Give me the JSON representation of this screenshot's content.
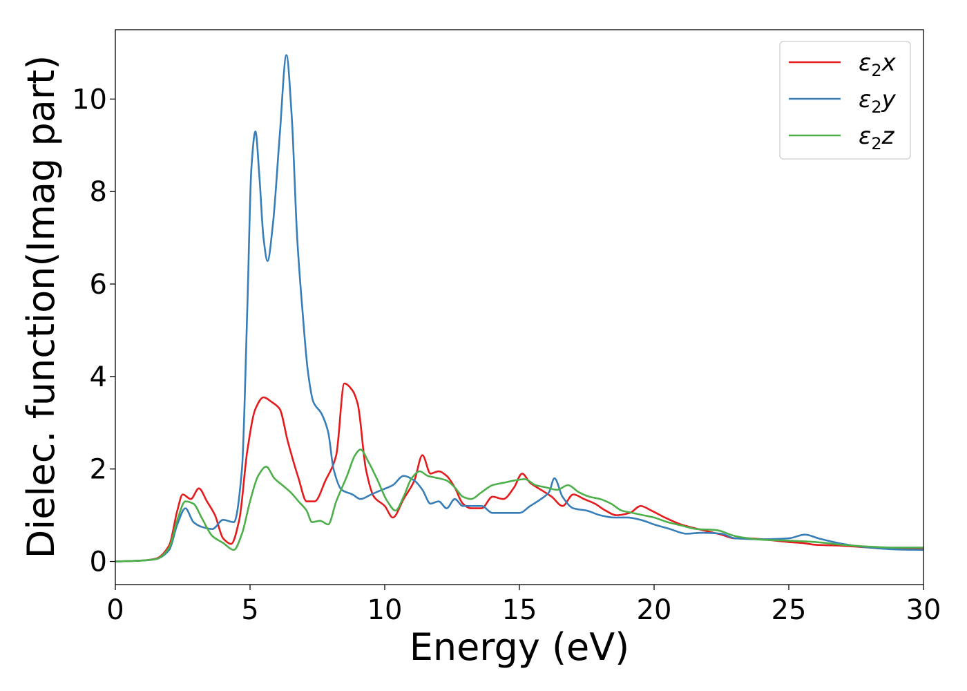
{
  "chart_data": {
    "type": "line",
    "title": "",
    "xlabel": "Energy (eV)",
    "ylabel": "Dielec. function(Imag part)",
    "xlim": [
      0,
      30
    ],
    "ylim": [
      -0.5,
      11.5
    ],
    "xticks": [
      0,
      5,
      10,
      15,
      20,
      25,
      30
    ],
    "yticks": [
      0,
      2,
      4,
      6,
      8,
      10
    ],
    "grid": false,
    "legend_position": "top-right",
    "series": [
      {
        "name": "ε₂x",
        "legend": {
          "base": "ε",
          "sub": "2",
          "axis": "x"
        },
        "color": "#e41a1c",
        "points": [
          [
            0,
            0
          ],
          [
            1,
            0.02
          ],
          [
            1.5,
            0.06
          ],
          [
            2,
            0.35
          ],
          [
            2.3,
            1.1
          ],
          [
            2.5,
            1.45
          ],
          [
            2.8,
            1.35
          ],
          [
            3.1,
            1.58
          ],
          [
            3.4,
            1.3
          ],
          [
            3.7,
            1.0
          ],
          [
            4.0,
            0.5
          ],
          [
            4.3,
            0.38
          ],
          [
            4.6,
            0.9
          ],
          [
            4.9,
            2.4
          ],
          [
            5.2,
            3.3
          ],
          [
            5.5,
            3.55
          ],
          [
            5.8,
            3.45
          ],
          [
            6.1,
            3.3
          ],
          [
            6.4,
            2.6
          ],
          [
            6.8,
            1.8
          ],
          [
            7.1,
            1.3
          ],
          [
            7.4,
            1.3
          ],
          [
            7.8,
            1.75
          ],
          [
            8.2,
            2.3
          ],
          [
            8.5,
            3.85
          ],
          [
            8.8,
            3.7
          ],
          [
            9.0,
            3.4
          ],
          [
            9.3,
            2.0
          ],
          [
            9.6,
            1.4
          ],
          [
            10.0,
            1.2
          ],
          [
            10.3,
            0.95
          ],
          [
            10.7,
            1.35
          ],
          [
            11.1,
            1.75
          ],
          [
            11.4,
            2.3
          ],
          [
            11.7,
            1.9
          ],
          [
            12.0,
            1.95
          ],
          [
            12.3,
            1.85
          ],
          [
            12.6,
            1.6
          ],
          [
            12.9,
            1.25
          ],
          [
            13.2,
            1.15
          ],
          [
            13.6,
            1.15
          ],
          [
            14.0,
            1.4
          ],
          [
            14.4,
            1.35
          ],
          [
            14.8,
            1.6
          ],
          [
            15.1,
            1.9
          ],
          [
            15.4,
            1.7
          ],
          [
            15.8,
            1.55
          ],
          [
            16.2,
            1.4
          ],
          [
            16.6,
            1.2
          ],
          [
            17.0,
            1.45
          ],
          [
            17.4,
            1.35
          ],
          [
            17.8,
            1.25
          ],
          [
            18.2,
            1.1
          ],
          [
            18.6,
            1.0
          ],
          [
            19.1,
            1.05
          ],
          [
            19.5,
            1.2
          ],
          [
            19.9,
            1.1
          ],
          [
            20.4,
            0.95
          ],
          [
            21,
            0.8
          ],
          [
            21.5,
            0.72
          ],
          [
            22,
            0.65
          ],
          [
            22.5,
            0.58
          ],
          [
            23,
            0.5
          ],
          [
            23.5,
            0.5
          ],
          [
            24,
            0.48
          ],
          [
            24.5,
            0.45
          ],
          [
            25,
            0.42
          ],
          [
            25.5,
            0.4
          ],
          [
            26,
            0.36
          ],
          [
            27,
            0.34
          ],
          [
            28,
            0.3
          ],
          [
            29,
            0.28
          ],
          [
            30,
            0.27
          ]
        ]
      },
      {
        "name": "ε₂y",
        "legend": {
          "base": "ε",
          "sub": "2",
          "axis": "y"
        },
        "color": "#377eb8",
        "points": [
          [
            0,
            0
          ],
          [
            1,
            0.02
          ],
          [
            1.5,
            0.05
          ],
          [
            2,
            0.25
          ],
          [
            2.3,
            0.8
          ],
          [
            2.6,
            1.15
          ],
          [
            2.9,
            0.85
          ],
          [
            3.2,
            0.75
          ],
          [
            3.6,
            0.7
          ],
          [
            4.0,
            0.9
          ],
          [
            4.4,
            0.85
          ],
          [
            4.7,
            2.0
          ],
          [
            4.9,
            5.5
          ],
          [
            5.05,
            8.5
          ],
          [
            5.2,
            9.3
          ],
          [
            5.35,
            8.3
          ],
          [
            5.5,
            7.0
          ],
          [
            5.65,
            6.5
          ],
          [
            5.85,
            7.3
          ],
          [
            6.1,
            9.2
          ],
          [
            6.35,
            10.95
          ],
          [
            6.55,
            9.6
          ],
          [
            6.75,
            7.0
          ],
          [
            6.95,
            5.4
          ],
          [
            7.15,
            4.1
          ],
          [
            7.35,
            3.45
          ],
          [
            7.65,
            3.2
          ],
          [
            7.9,
            2.8
          ],
          [
            8.1,
            2.0
          ],
          [
            8.4,
            1.55
          ],
          [
            8.8,
            1.45
          ],
          [
            9.1,
            1.35
          ],
          [
            9.5,
            1.45
          ],
          [
            9.9,
            1.55
          ],
          [
            10.3,
            1.65
          ],
          [
            10.7,
            1.85
          ],
          [
            11.1,
            1.75
          ],
          [
            11.4,
            1.55
          ],
          [
            11.7,
            1.25
          ],
          [
            12.0,
            1.3
          ],
          [
            12.3,
            1.15
          ],
          [
            12.6,
            1.35
          ],
          [
            12.9,
            1.2
          ],
          [
            13.2,
            1.2
          ],
          [
            13.6,
            1.2
          ],
          [
            14.0,
            1.05
          ],
          [
            14.5,
            1.05
          ],
          [
            15.0,
            1.05
          ],
          [
            15.4,
            1.2
          ],
          [
            15.8,
            1.35
          ],
          [
            16.1,
            1.5
          ],
          [
            16.3,
            1.8
          ],
          [
            16.6,
            1.4
          ],
          [
            17.0,
            1.15
          ],
          [
            17.5,
            1.1
          ],
          [
            18.0,
            1.0
          ],
          [
            18.5,
            0.95
          ],
          [
            19.0,
            0.95
          ],
          [
            19.5,
            0.9
          ],
          [
            20.0,
            0.8
          ],
          [
            20.6,
            0.7
          ],
          [
            21.2,
            0.6
          ],
          [
            21.8,
            0.62
          ],
          [
            22.5,
            0.6
          ],
          [
            23,
            0.5
          ],
          [
            24,
            0.48
          ],
          [
            25,
            0.5
          ],
          [
            25.6,
            0.58
          ],
          [
            26.1,
            0.5
          ],
          [
            27,
            0.38
          ],
          [
            28,
            0.3
          ],
          [
            29,
            0.26
          ],
          [
            30,
            0.25
          ]
        ]
      },
      {
        "name": "ε₂z",
        "legend": {
          "base": "ε",
          "sub": "2",
          "axis": "z"
        },
        "color": "#4daf4a",
        "points": [
          [
            0,
            0
          ],
          [
            1,
            0.02
          ],
          [
            1.5,
            0.05
          ],
          [
            2,
            0.3
          ],
          [
            2.3,
            0.9
          ],
          [
            2.6,
            1.3
          ],
          [
            2.9,
            1.25
          ],
          [
            3.2,
            0.95
          ],
          [
            3.6,
            0.55
          ],
          [
            4.0,
            0.4
          ],
          [
            4.4,
            0.25
          ],
          [
            4.7,
            0.6
          ],
          [
            5.0,
            1.3
          ],
          [
            5.3,
            1.85
          ],
          [
            5.6,
            2.05
          ],
          [
            5.9,
            1.8
          ],
          [
            6.2,
            1.65
          ],
          [
            6.5,
            1.5
          ],
          [
            6.8,
            1.3
          ],
          [
            7.1,
            1.1
          ],
          [
            7.3,
            0.85
          ],
          [
            7.6,
            0.88
          ],
          [
            7.9,
            0.8
          ],
          [
            8.2,
            1.3
          ],
          [
            8.6,
            1.85
          ],
          [
            8.9,
            2.3
          ],
          [
            9.1,
            2.42
          ],
          [
            9.4,
            2.15
          ],
          [
            9.7,
            1.8
          ],
          [
            10.1,
            1.3
          ],
          [
            10.4,
            1.1
          ],
          [
            10.7,
            1.4
          ],
          [
            11.0,
            1.8
          ],
          [
            11.3,
            1.95
          ],
          [
            11.6,
            1.85
          ],
          [
            12.0,
            1.8
          ],
          [
            12.3,
            1.75
          ],
          [
            12.6,
            1.6
          ],
          [
            12.9,
            1.4
          ],
          [
            13.2,
            1.35
          ],
          [
            13.6,
            1.5
          ],
          [
            14.0,
            1.65
          ],
          [
            14.4,
            1.7
          ],
          [
            14.8,
            1.75
          ],
          [
            15.2,
            1.78
          ],
          [
            15.6,
            1.65
          ],
          [
            16.0,
            1.6
          ],
          [
            16.4,
            1.55
          ],
          [
            16.8,
            1.65
          ],
          [
            17.2,
            1.5
          ],
          [
            17.6,
            1.4
          ],
          [
            18.0,
            1.35
          ],
          [
            18.4,
            1.25
          ],
          [
            18.8,
            1.1
          ],
          [
            19.2,
            1.05
          ],
          [
            19.6,
            1.0
          ],
          [
            20.0,
            0.95
          ],
          [
            20.5,
            0.85
          ],
          [
            21,
            0.78
          ],
          [
            21.6,
            0.7
          ],
          [
            22.3,
            0.68
          ],
          [
            23,
            0.55
          ],
          [
            23.5,
            0.5
          ],
          [
            24,
            0.47
          ],
          [
            25,
            0.45
          ],
          [
            26,
            0.42
          ],
          [
            27,
            0.36
          ],
          [
            28,
            0.32
          ],
          [
            29,
            0.3
          ],
          [
            30,
            0.3
          ]
        ]
      }
    ]
  }
}
